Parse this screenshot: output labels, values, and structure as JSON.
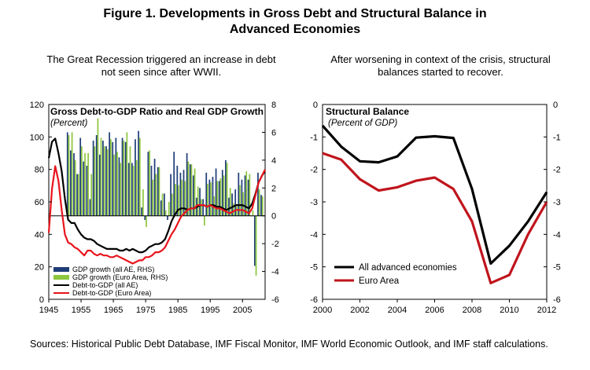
{
  "title_line1": "Figure 1. Developments in Gross Debt and Structural Balance in",
  "title_line2": "Advanced Economies",
  "sources": "Sources: Historical Public Debt Database, IMF Fiscal Monitor, IMF World Economic Outlook, and IMF staff calculations.",
  "colors": {
    "gdp_all_ae": "#1f3d78",
    "gdp_euro": "#8ec63f",
    "debt_all_ae": "#000000",
    "debt_euro": "#e8141c",
    "struct_all_ae": "#000000",
    "struct_euro": "#c0141c"
  },
  "chart_data": [
    {
      "type": "bar+line",
      "subtitle": "The Great Recession triggered an increase in debt not seen since after WWII.",
      "title": "Gross Debt-to-GDP Ratio and Real GDP Growth",
      "units": "(Percent)",
      "x_tick_labels": [
        "1945",
        "1955",
        "1965",
        "1975",
        "1985",
        "1995",
        "2005"
      ],
      "xlim": [
        1945,
        2012
      ],
      "y_left": {
        "ylim": [
          0,
          120
        ],
        "ticks": [
          "0",
          "20",
          "40",
          "60",
          "80",
          "100",
          "120"
        ]
      },
      "y_right": {
        "ylim": [
          -6,
          8
        ],
        "ticks": [
          "-6",
          "-4",
          "-2",
          "0",
          "2",
          "4",
          "6",
          "8"
        ]
      },
      "legend": [
        "GDP growth (all AE, RHS)",
        "GDP growth (Euro Area, RHS)",
        "Debt-to-GDP (all AE)",
        "Debt-to-GDP (Euro Area)"
      ],
      "legend_position": "bottom-left",
      "bar_years": [
        1951,
        1952,
        1953,
        1954,
        1955,
        1956,
        1957,
        1958,
        1959,
        1960,
        1961,
        1962,
        1963,
        1964,
        1965,
        1966,
        1967,
        1968,
        1969,
        1970,
        1971,
        1972,
        1973,
        1974,
        1975,
        1976,
        1977,
        1978,
        1979,
        1980,
        1981,
        1982,
        1983,
        1984,
        1985,
        1986,
        1987,
        1988,
        1989,
        1990,
        1991,
        1992,
        1993,
        1994,
        1995,
        1996,
        1997,
        1998,
        1999,
        2000,
        2001,
        2002,
        2003,
        2004,
        2005,
        2006,
        2007,
        2008,
        2009,
        2010,
        2011
      ],
      "series": [
        {
          "name": "GDP growth (all AE, RHS)",
          "values": [
            6.0,
            4.7,
            4.5,
            3.0,
            5.6,
            3.9,
            3.6,
            1.2,
            5.4,
            5.8,
            4.4,
            5.4,
            5.0,
            6.0,
            5.3,
            5.6,
            4.2,
            5.6,
            5.3,
            3.8,
            3.8,
            5.5,
            6.1,
            0.6,
            -0.3,
            4.6,
            3.6,
            4.1,
            3.5,
            1.1,
            1.6,
            -0.3,
            3.0,
            4.6,
            3.6,
            3.1,
            3.3,
            4.5,
            3.7,
            2.9,
            1.3,
            2.0,
            1.2,
            3.1,
            2.6,
            2.8,
            3.4,
            2.5,
            3.3,
            4.0,
            1.3,
            1.6,
            1.9,
            3.1,
            2.6,
            2.9,
            2.6,
            0.0,
            -3.6,
            3.1,
            1.5
          ]
        },
        {
          "name": "GDP growth (Euro Area, RHS)",
          "values": [
            5.8,
            6.0,
            4.0,
            3.0,
            5.0,
            4.5,
            4.5,
            3.0,
            5.0,
            7.0,
            5.6,
            5.0,
            4.8,
            5.5,
            4.4,
            4.6,
            3.8,
            5.4,
            6.0,
            5.0,
            3.6,
            4.0,
            5.6,
            1.9,
            -0.8,
            4.7,
            2.6,
            3.0,
            3.5,
            1.6,
            0.4,
            1.0,
            1.6,
            2.3,
            2.2,
            2.6,
            2.5,
            3.9,
            3.7,
            3.4,
            2.1,
            1.2,
            -0.7,
            2.3,
            2.4,
            1.4,
            2.5,
            2.7,
            2.9,
            3.8,
            2.0,
            0.9,
            0.7,
            2.2,
            1.7,
            3.2,
            3.0,
            0.4,
            -4.3,
            1.9,
            1.4
          ]
        },
        {
          "name": "Debt-to-GDP (all AE)",
          "x": [
            1945,
            1946,
            1947,
            1948,
            1949,
            1950,
            1951,
            1952,
            1953,
            1954,
            1955,
            1956,
            1957,
            1958,
            1959,
            1960,
            1961,
            1962,
            1963,
            1964,
            1965,
            1966,
            1967,
            1968,
            1969,
            1970,
            1971,
            1972,
            1973,
            1974,
            1975,
            1976,
            1977,
            1978,
            1979,
            1980,
            1981,
            1982,
            1983,
            1984,
            1985,
            1986,
            1987,
            1988,
            1989,
            1990,
            1991,
            1992,
            1993,
            1994,
            1995,
            1996,
            1997,
            1998,
            1999,
            2000,
            2001,
            2002,
            2003,
            2004,
            2005,
            2006,
            2007,
            2008,
            2009,
            2010,
            2011,
            2012
          ],
          "values": [
            87,
            97,
            99,
            90,
            79,
            62,
            49,
            47,
            47,
            43,
            40,
            38,
            37,
            37,
            36,
            34,
            33,
            32,
            31,
            31,
            31,
            31,
            30,
            30,
            31,
            30,
            31,
            30,
            29,
            29,
            30,
            32,
            33,
            34,
            34,
            35,
            37,
            42,
            48,
            52,
            55,
            56,
            56,
            55,
            56,
            56,
            57,
            58,
            58,
            57,
            58,
            58,
            57,
            57,
            56,
            55,
            56,
            57,
            58,
            58,
            58,
            57,
            56,
            59,
            65,
            72,
            76,
            79
          ]
        },
        {
          "name": "Debt-to-GDP (Euro Area)",
          "x": [
            1945,
            1946,
            1947,
            1948,
            1949,
            1950,
            1951,
            1952,
            1953,
            1954,
            1955,
            1956,
            1957,
            1958,
            1959,
            1960,
            1961,
            1962,
            1963,
            1964,
            1965,
            1966,
            1967,
            1968,
            1969,
            1970,
            1971,
            1972,
            1973,
            1974,
            1975,
            1976,
            1977,
            1978,
            1979,
            1980,
            1981,
            1982,
            1983,
            1984,
            1985,
            1986,
            1987,
            1988,
            1989,
            1990,
            1991,
            1992,
            1993,
            1994,
            1995,
            1996,
            1997,
            1998,
            1999,
            2000,
            2001,
            2002,
            2003,
            2004,
            2005,
            2006,
            2007,
            2008,
            2009,
            2010,
            2011,
            2012
          ],
          "values": [
            41,
            68,
            82,
            73,
            55,
            40,
            35,
            34,
            32,
            31,
            29,
            27,
            30,
            30,
            28,
            27,
            28,
            27,
            27,
            26,
            26,
            27,
            26,
            25,
            24,
            23,
            22,
            23,
            24,
            24,
            26,
            26,
            27,
            29,
            29,
            30,
            32,
            36,
            40,
            43,
            47,
            51,
            53,
            55,
            56,
            56,
            58,
            58,
            58,
            57,
            58,
            57,
            56,
            56,
            55,
            54,
            53,
            54,
            55,
            55,
            55,
            54,
            53,
            56,
            64,
            72,
            76,
            80
          ]
        }
      ]
    },
    {
      "type": "line",
      "subtitle": "After worsening in context of the crisis, structural balances started to recover.",
      "title": "Structural Balance",
      "units": "(Percent of GDP)",
      "x_tick_labels": [
        "2000",
        "2002",
        "2004",
        "2006",
        "2008",
        "2010",
        "2012"
      ],
      "xlim": [
        2000,
        2012
      ],
      "y_left": {
        "ylim": [
          -6,
          0
        ],
        "ticks": [
          "-6",
          "-5",
          "-4",
          "-3",
          "-2",
          "-1",
          "0"
        ]
      },
      "y_right": {
        "ylim": [
          -6,
          0
        ],
        "ticks": [
          "-6",
          "-5",
          "-4",
          "-3",
          "-2",
          "-1",
          "0"
        ]
      },
      "legend": [
        "All advanced economies",
        "Euro Area"
      ],
      "legend_position": "bottom-left",
      "x": [
        2000,
        2001,
        2002,
        2003,
        2004,
        2005,
        2006,
        2007,
        2008,
        2009,
        2010,
        2011,
        2012
      ],
      "series": [
        {
          "name": "All advanced economies",
          "values": [
            -0.65,
            -1.3,
            -1.75,
            -1.78,
            -1.6,
            -1.02,
            -0.98,
            -1.03,
            -2.6,
            -4.9,
            -4.35,
            -3.6,
            -2.7
          ]
        },
        {
          "name": "Euro Area",
          "values": [
            -1.5,
            -1.7,
            -2.3,
            -2.65,
            -2.55,
            -2.35,
            -2.25,
            -2.6,
            -3.6,
            -5.5,
            -5.25,
            -4.0,
            -3.0
          ]
        }
      ]
    }
  ]
}
